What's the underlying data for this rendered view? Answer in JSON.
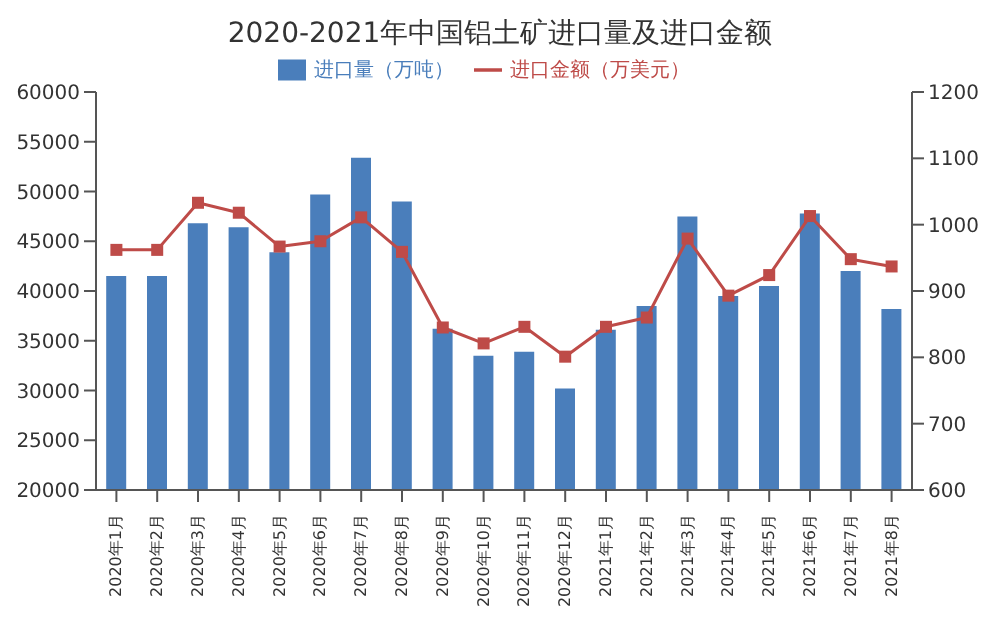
{
  "chart_data": {
    "type": "bar",
    "title": "2020-2021年中国铝土矿进口量及进口金额",
    "categories": [
      "2020年1月",
      "2020年2月",
      "2020年3月",
      "2020年4月",
      "2020年5月",
      "2020年6月",
      "2020年7月",
      "2020年8月",
      "2020年9月",
      "2020年10月",
      "2020年11月",
      "2020年12月",
      "2021年1月",
      "2021年2月",
      "2021年3月",
      "2021年4月",
      "2021年5月",
      "2021年6月",
      "2021年7月",
      "2021年8月"
    ],
    "series": [
      {
        "name": "进口量（万吨）",
        "color": "#4a7ebb",
        "values": [
          41500,
          41500,
          46800,
          46400,
          43900,
          49700,
          53400,
          49000,
          36200,
          33500,
          33900,
          30200,
          36100,
          38500,
          47500,
          39500,
          40500,
          47800,
          42000,
          38200
        ]
      },
      {
        "name": "进口金额（万美元）",
        "type": "line",
        "axis": "y2",
        "color": "#be4b48",
        "values": [
          962,
          962,
          1033,
          1018,
          967,
          975,
          1011,
          959,
          845,
          821,
          846,
          801,
          846,
          860,
          979,
          893,
          924,
          1013,
          948,
          937
        ]
      }
    ],
    "ylim": [
      20000,
      60000
    ],
    "yticks": [
      20000,
      25000,
      30000,
      35000,
      40000,
      45000,
      50000,
      55000,
      60000
    ],
    "y2lim": [
      600,
      1200
    ],
    "y2ticks": [
      600,
      700,
      800,
      900,
      1000,
      1100,
      1200
    ],
    "legend": "top",
    "marker": "square",
    "grid": false
  }
}
